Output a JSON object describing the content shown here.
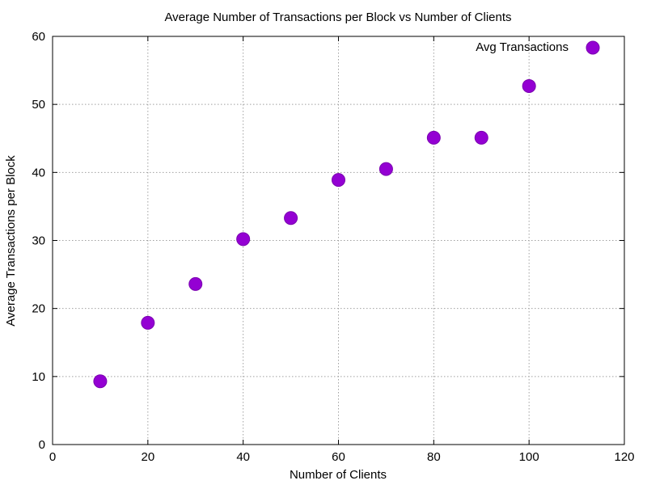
{
  "chart_data": {
    "type": "scatter",
    "title": "Average Number of Transactions per Block vs Number of Clients",
    "xlabel": "Number of Clients",
    "ylabel": "Average Transactions per Block",
    "xlim": [
      0,
      120
    ],
    "ylim": [
      0,
      60
    ],
    "xticks": [
      0,
      20,
      40,
      60,
      80,
      100,
      120
    ],
    "yticks": [
      0,
      10,
      20,
      30,
      40,
      50,
      60
    ],
    "grid": true,
    "legend_position": "top-right",
    "series": [
      {
        "name": "Avg Transactions",
        "color": "#9400d3",
        "points": [
          {
            "x": 10,
            "y": 9.3
          },
          {
            "x": 20,
            "y": 17.9
          },
          {
            "x": 30,
            "y": 23.6
          },
          {
            "x": 40,
            "y": 30.2
          },
          {
            "x": 50,
            "y": 33.3
          },
          {
            "x": 60,
            "y": 38.9
          },
          {
            "x": 70,
            "y": 40.5
          },
          {
            "x": 80,
            "y": 45.1
          },
          {
            "x": 90,
            "y": 45.1
          },
          {
            "x": 100,
            "y": 52.7
          }
        ]
      }
    ]
  }
}
